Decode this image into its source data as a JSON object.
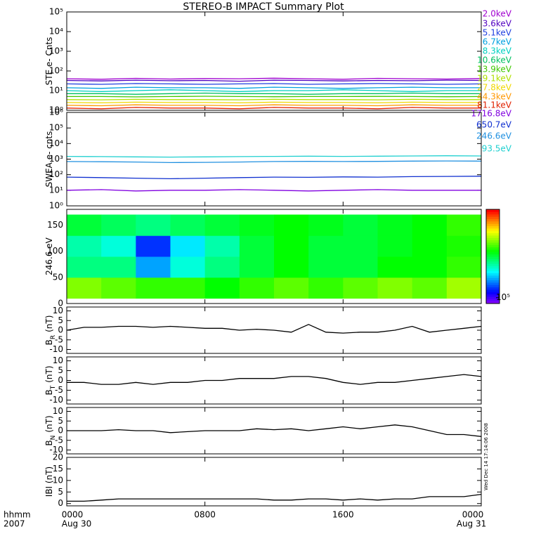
{
  "title": "STEREO-B IMPACT Summary Plot",
  "timestamp": "Wed Dec 14 17:14:06 2008",
  "x_axis": {
    "xlim": [
      0,
      24
    ],
    "xticks": [
      {
        "value": 0,
        "label": "0000"
      },
      {
        "value": 8,
        "label": "0800"
      },
      {
        "value": 16,
        "label": "1600"
      },
      {
        "value": 24,
        "label": "0000"
      }
    ],
    "date_labels": [
      {
        "value": 0,
        "label": "Aug 30"
      },
      {
        "value": 24,
        "label": "Aug 31"
      }
    ],
    "unit_labels": [
      "hhmm",
      "2007"
    ]
  },
  "chart_data": [
    {
      "type": "line",
      "ylabel": "STE e- Cnts",
      "log_scale": true,
      "ylim": [
        1,
        100000
      ],
      "yticks": [
        {
          "value": 1,
          "label": "10⁰"
        },
        {
          "value": 10,
          "label": "10¹"
        },
        {
          "value": 100,
          "label": "10²"
        },
        {
          "value": 1000,
          "label": "10³"
        },
        {
          "value": 10000,
          "label": "10⁴"
        },
        {
          "value": 100000,
          "label": "10⁵"
        }
      ],
      "x": [
        0,
        2,
        4,
        6,
        8,
        10,
        12,
        14,
        16,
        18,
        20,
        22,
        24
      ],
      "series": [
        {
          "name": "2.0keV",
          "color": "#a000d0",
          "values": [
            40,
            38,
            42,
            39,
            41,
            40,
            43,
            40,
            38,
            42,
            40,
            39,
            41
          ]
        },
        {
          "name": "3.6keV",
          "color": "#5000c0",
          "values": [
            33,
            31,
            34,
            32,
            33,
            30,
            34,
            33,
            31,
            33,
            32,
            34,
            33
          ]
        },
        {
          "name": "5.1keV",
          "color": "#2040e0",
          "values": [
            22,
            21,
            23,
            22,
            21,
            22,
            23,
            21,
            22,
            23,
            22,
            21,
            22
          ]
        },
        {
          "name": "6.7keV",
          "color": "#00a0e0",
          "values": [
            14,
            13,
            15,
            14,
            14,
            13,
            15,
            14,
            13,
            14,
            15,
            14,
            14
          ]
        },
        {
          "name": "8.3keV",
          "color": "#00d0c0",
          "values": [
            10,
            9,
            10,
            11,
            10,
            9,
            10,
            10,
            11,
            10,
            9,
            10,
            10
          ]
        },
        {
          "name": "10.6keV",
          "color": "#00c060",
          "values": [
            7,
            7,
            6.5,
            7,
            7.5,
            7,
            7,
            6.5,
            7,
            7,
            7.5,
            7,
            7
          ]
        },
        {
          "name": "13.9keV",
          "color": "#40c800",
          "values": [
            5,
            5,
            4.8,
            5,
            5.2,
            5,
            4.9,
            5,
            5,
            5.1,
            5,
            4.9,
            5
          ]
        },
        {
          "name": "19.1keV",
          "color": "#b0e000",
          "values": [
            3.5,
            3.4,
            3.6,
            3.5,
            3.5,
            3.4,
            3.6,
            3.5,
            3.5,
            3.4,
            3.6,
            3.5,
            3.5
          ]
        },
        {
          "name": "27.8keV",
          "color": "#f0d800",
          "values": [
            2.5,
            2.4,
            2.6,
            2.5,
            2.5,
            2.4,
            2.6,
            2.5,
            2.5,
            2.4,
            2.6,
            2.5,
            2.5
          ]
        },
        {
          "name": "44.3keV",
          "color": "#ff9800",
          "values": [
            1.8,
            1.7,
            1.9,
            1.8,
            1.8,
            1.7,
            1.9,
            1.8,
            1.8,
            1.7,
            1.9,
            1.8,
            1.8
          ]
        },
        {
          "name": "81.1keV",
          "color": "#e02000",
          "values": [
            1.3,
            1.2,
            1.4,
            1.3,
            1.3,
            1.2,
            1.4,
            1.3,
            1.3,
            1.2,
            1.4,
            1.3,
            1.3
          ]
        }
      ]
    },
    {
      "type": "line",
      "ylabel": "SWEA e- cnts",
      "log_scale": true,
      "ylim": [
        1,
        1000000
      ],
      "yticks": [
        {
          "value": 1,
          "label": "10⁰"
        },
        {
          "value": 10,
          "label": "10¹"
        },
        {
          "value": 100,
          "label": "10²"
        },
        {
          "value": 1000,
          "label": "10³"
        },
        {
          "value": 10000,
          "label": "10⁴"
        },
        {
          "value": 100000,
          "label": "10⁵"
        },
        {
          "value": 1000000,
          "label": "10⁶"
        }
      ],
      "x": [
        0,
        2,
        4,
        6,
        8,
        10,
        12,
        14,
        16,
        18,
        20,
        22,
        24
      ],
      "series": [
        {
          "name": "1716.8eV",
          "color": "#8000e0",
          "values": [
            10,
            11,
            9,
            10,
            10,
            11,
            10,
            9,
            10,
            11,
            10,
            10,
            10
          ]
        },
        {
          "name": "650.7eV",
          "color": "#1030d0",
          "values": [
            70,
            65,
            60,
            55,
            60,
            65,
            70,
            68,
            72,
            70,
            75,
            78,
            80
          ]
        },
        {
          "name": "246.6eV",
          "color": "#2090e0",
          "values": [
            700,
            680,
            650,
            600,
            620,
            650,
            700,
            720,
            700,
            720,
            750,
            760,
            750
          ]
        },
        {
          "name": "93.5eV",
          "color": "#20d0d0",
          "values": [
            1500,
            1450,
            1400,
            1350,
            1400,
            1450,
            1500,
            1550,
            1500,
            1550,
            1600,
            1650,
            1600
          ]
        }
      ]
    },
    {
      "type": "heatmap",
      "ylabel": "246.6 eV",
      "ylim": [
        0,
        180
      ],
      "yticks": [
        0,
        50,
        100,
        150
      ],
      "x_edges": [
        0,
        2,
        4,
        6,
        8,
        10,
        12,
        14,
        16,
        18,
        20,
        22,
        24
      ],
      "y_edges": [
        10,
        50,
        90,
        130,
        170
      ],
      "zlim": [
        80000,
        3000000
      ],
      "zticks": [
        {
          "value": 100000,
          "label": "10⁵"
        }
      ],
      "values": [
        [
          900000,
          800000,
          700000,
          700000,
          600000,
          700000,
          800000,
          700000,
          800000,
          900000,
          800000,
          1000000
        ],
        [
          400000,
          400000,
          200000,
          300000,
          400000,
          500000,
          600000,
          500000,
          500000,
          600000,
          600000,
          700000
        ],
        [
          350000,
          300000,
          140000,
          250000,
          350000,
          500000,
          600000,
          500000,
          500000,
          550000,
          600000,
          650000
        ],
        [
          500000,
          450000,
          400000,
          450000,
          500000,
          550000,
          600000,
          550000,
          500000,
          550000,
          600000,
          700000
        ]
      ]
    },
    {
      "type": "line",
      "ylabel": "B",
      "ylabel_sub": "R",
      "ylabel_unit": "(nT)",
      "ylim": [
        -12,
        12
      ],
      "yticks": [
        -10,
        -5,
        0,
        5,
        10
      ],
      "x": [
        0,
        1,
        2,
        3,
        4,
        5,
        6,
        7,
        8,
        9,
        10,
        11,
        12,
        13,
        14,
        15,
        16,
        17,
        18,
        19,
        20,
        21,
        22,
        23,
        24
      ],
      "series": [
        {
          "color": "#000000",
          "values": [
            0,
            1.5,
            1.5,
            2,
            2,
            1.5,
            2,
            1.5,
            1,
            1,
            0,
            0.5,
            0,
            -1,
            3,
            -1,
            -1.5,
            -1,
            -1,
            0,
            2,
            -1,
            0,
            1,
            2
          ]
        }
      ]
    },
    {
      "type": "line",
      "ylabel": "B",
      "ylabel_sub": "T",
      "ylabel_unit": "(nT)",
      "ylim": [
        -12,
        12
      ],
      "yticks": [
        -10,
        -5,
        0,
        5,
        10
      ],
      "x": [
        0,
        1,
        2,
        3,
        4,
        5,
        6,
        7,
        8,
        9,
        10,
        11,
        12,
        13,
        14,
        15,
        16,
        17,
        18,
        19,
        20,
        21,
        22,
        23,
        24
      ],
      "series": [
        {
          "color": "#000000",
          "values": [
            -1,
            -1,
            -2,
            -2,
            -1,
            -2,
            -1,
            -1,
            0,
            0,
            1,
            1,
            1,
            2,
            2,
            1,
            -1,
            -2,
            -1,
            -1,
            0,
            1,
            2,
            3,
            2
          ]
        }
      ]
    },
    {
      "type": "line",
      "ylabel": "B",
      "ylabel_sub": "N",
      "ylabel_unit": "(nT)",
      "ylim": [
        -12,
        12
      ],
      "yticks": [
        -10,
        -5,
        0,
        5,
        10
      ],
      "x": [
        0,
        1,
        2,
        3,
        4,
        5,
        6,
        7,
        8,
        9,
        10,
        11,
        12,
        13,
        14,
        15,
        16,
        17,
        18,
        19,
        20,
        21,
        22,
        23,
        24
      ],
      "series": [
        {
          "color": "#000000",
          "values": [
            0,
            0,
            0,
            0.5,
            0,
            0,
            -1,
            -0.5,
            0,
            0,
            0,
            1,
            0.5,
            1,
            0,
            1,
            2,
            1,
            2,
            3,
            2,
            0,
            -2,
            -2,
            -3
          ]
        }
      ]
    },
    {
      "type": "line",
      "ylabel": "IBI (nT)",
      "ylim": [
        -1,
        20
      ],
      "yticks": [
        0,
        5,
        10,
        15,
        20
      ],
      "x": [
        0,
        1,
        2,
        3,
        4,
        5,
        6,
        7,
        8,
        9,
        10,
        11,
        12,
        13,
        14,
        15,
        16,
        17,
        18,
        19,
        20,
        21,
        22,
        23,
        24
      ],
      "series": [
        {
          "color": "#000000",
          "values": [
            1,
            1,
            1.5,
            2,
            2,
            2,
            2,
            2,
            2,
            2,
            2,
            2,
            1.5,
            1.5,
            2,
            2,
            1.5,
            2,
            1.5,
            2,
            2,
            3,
            3,
            3,
            4
          ]
        }
      ]
    }
  ]
}
